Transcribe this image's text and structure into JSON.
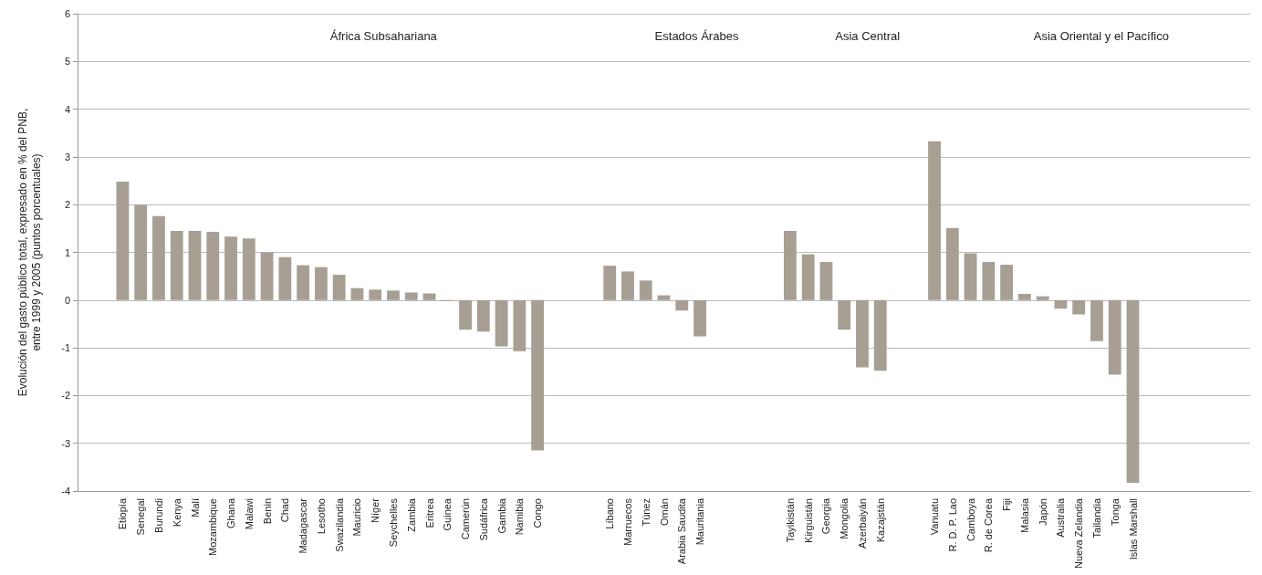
{
  "chart_data": {
    "type": "bar",
    "ylabel": "Evolución del gasto público total, expresado en % del PNB,\nentre 1999 y 2005 (puntos porcentuales)",
    "categories": [
      null,
      null,
      "Etiopía",
      "Senegal",
      "Burundi",
      "Kenya",
      "Malí",
      "Mozambique",
      "Ghana",
      "Malawi",
      "Benin",
      "Chad",
      "Madagascar",
      "Lesotho",
      "Swazilandia",
      "Mauricio",
      "Níger",
      "Seychelles",
      "Zambia",
      "Eritrea",
      "Guinea",
      "Camerún",
      "Sudáfrica",
      "Gambia",
      "Namibia",
      "Congo",
      null,
      null,
      null,
      "Líbano",
      "Marruecos",
      "Túnez",
      "Omán",
      "Arabia Saudita",
      "Mauritania",
      null,
      null,
      null,
      null,
      "Tayikistán",
      "Kirguistán",
      "Georgia",
      "Mongolia",
      "Azerbaiyán",
      "Kazajstán",
      null,
      null,
      "Vanuatu",
      "R. D. P. Lao",
      "Camboya",
      "R. de Corea",
      "Fiji",
      "Malasia",
      "Japón",
      "Australia",
      "Nueva Zelandia",
      "Tailandia",
      "Tonga",
      "Islas Marshall",
      null,
      null,
      null,
      null,
      null,
      null
    ],
    "values": [
      null,
      null,
      2.48,
      2.0,
      1.76,
      1.45,
      1.45,
      1.43,
      1.33,
      1.29,
      1.0,
      0.9,
      0.73,
      0.69,
      0.53,
      0.25,
      0.22,
      0.2,
      0.16,
      0.14,
      -0.02,
      -0.62,
      -0.66,
      -0.97,
      -1.07,
      -3.15,
      null,
      null,
      null,
      0.72,
      0.6,
      0.41,
      0.1,
      -0.22,
      -0.76,
      null,
      null,
      null,
      null,
      1.45,
      0.96,
      0.8,
      -0.62,
      -1.41,
      -1.48,
      null,
      null,
      3.33,
      1.51,
      0.98,
      0.8,
      0.74,
      0.13,
      0.08,
      -0.18,
      -0.3,
      -0.86,
      -1.56,
      -3.83,
      null,
      null,
      null,
      null,
      null,
      null
    ],
    "color": "#a89f94",
    "annotations": [
      "África Subsahariana",
      "Estados Árabes",
      "Asia Central",
      "Asia Oriental y el Pacífico"
    ],
    "ylim": [
      -4,
      6
    ],
    "yticks": [
      -4,
      -3,
      -2,
      -1,
      0,
      1,
      2,
      3,
      4,
      5,
      6
    ],
    "grid": "y"
  }
}
